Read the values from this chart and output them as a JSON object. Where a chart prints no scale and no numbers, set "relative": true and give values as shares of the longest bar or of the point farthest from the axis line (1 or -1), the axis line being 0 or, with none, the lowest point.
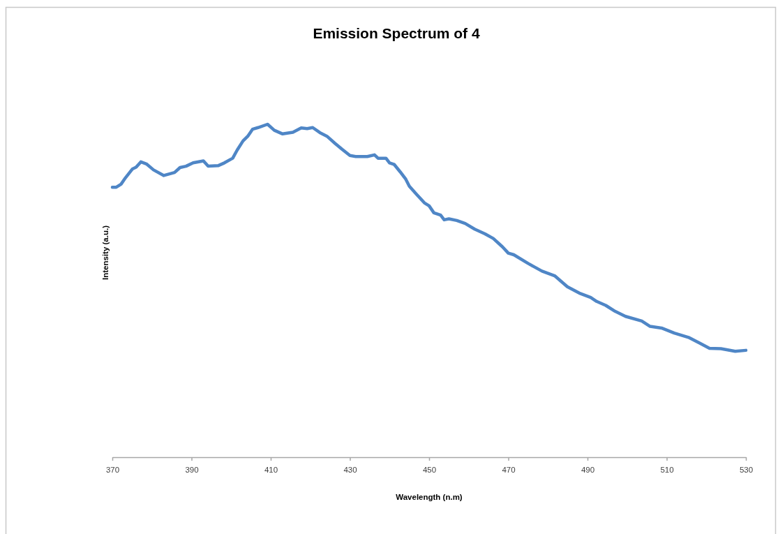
{
  "chart_data": {
    "type": "line",
    "title": "Emission Spectrum of 4",
    "xlabel": "Wavelength (n.m)",
    "ylabel": "Intensity (a.u.)",
    "relative": true,
    "xlim": [
      370,
      530
    ],
    "xticks": [
      370,
      390,
      410,
      430,
      450,
      470,
      490,
      510,
      530
    ],
    "series": [
      {
        "color": "#4f86c6",
        "x": [
          370.0,
          371.0,
          372.2,
          373.3,
          375.1,
          376.0,
          377.2,
          378.6,
          380.4,
          383.0,
          385.7,
          387.1,
          388.6,
          390.4,
          393.0,
          394.2,
          396.8,
          398.3,
          400.4,
          401.5,
          403.0,
          404.2,
          405.4,
          406.8,
          409.2,
          410.9,
          413.0,
          415.6,
          417.7,
          419.2,
          420.6,
          422.4,
          424.2,
          426.2,
          428.0,
          430.0,
          431.5,
          434.4,
          436.2,
          437.1,
          439.1,
          440.0,
          441.2,
          442.7,
          444.1,
          445.0,
          446.8,
          448.8,
          450.0,
          451.2,
          452.9,
          453.8,
          455.0,
          457.0,
          459.1,
          461.5,
          464.1,
          466.2,
          468.5,
          470.0,
          471.4,
          475.0,
          478.5,
          481.7,
          484.9,
          487.9,
          490.8,
          492.3,
          494.6,
          497.0,
          499.6,
          503.7,
          505.8,
          508.7,
          511.9,
          515.5,
          518.4,
          520.8,
          523.7,
          527.3,
          530.0
        ],
        "values": [
          0.811,
          0.811,
          0.82,
          0.839,
          0.866,
          0.871,
          0.887,
          0.881,
          0.863,
          0.846,
          0.855,
          0.87,
          0.874,
          0.884,
          0.89,
          0.874,
          0.876,
          0.884,
          0.898,
          0.922,
          0.95,
          0.964,
          0.985,
          0.99,
          1.0,
          0.982,
          0.971,
          0.976,
          0.989,
          0.987,
          0.99,
          0.975,
          0.964,
          0.943,
          0.925,
          0.906,
          0.903,
          0.903,
          0.908,
          0.898,
          0.898,
          0.884,
          0.879,
          0.857,
          0.835,
          0.814,
          0.79,
          0.764,
          0.755,
          0.734,
          0.727,
          0.713,
          0.716,
          0.711,
          0.702,
          0.685,
          0.671,
          0.657,
          0.632,
          0.613,
          0.608,
          0.582,
          0.559,
          0.545,
          0.512,
          0.493,
          0.48,
          0.468,
          0.456,
          0.438,
          0.423,
          0.409,
          0.393,
          0.388,
          0.373,
          0.36,
          0.342,
          0.327,
          0.326,
          0.318,
          0.321
        ]
      }
    ]
  }
}
